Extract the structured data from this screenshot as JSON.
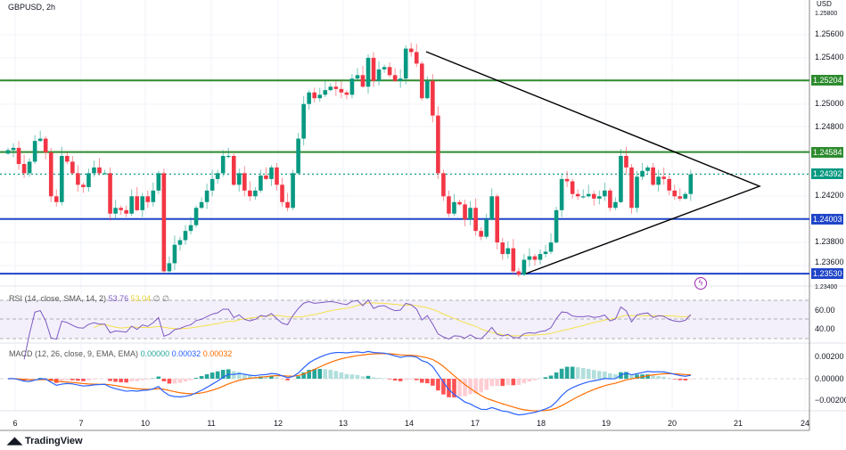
{
  "header": {
    "symbol": "GBPUSD, 2h",
    "currency": "USD"
  },
  "price_axis": [
    "1.25800",
    "1.25600",
    "1.25400",
    "1.25000",
    "1.24800",
    "1.24200",
    "1.23800",
    "1.23600",
    "1.23400"
  ],
  "levels": [
    {
      "value": "1.25204",
      "color": "#2e8b2e",
      "style": "solid"
    },
    {
      "value": "1.24584",
      "color": "#2e8b2e",
      "style": "solid"
    },
    {
      "value": "1.24392",
      "color": "#089981",
      "style": "dotted"
    },
    {
      "value": "1.24003",
      "color": "#1f45c8",
      "style": "solid"
    },
    {
      "value": "1.23530",
      "color": "#1f45c8",
      "style": "solid"
    }
  ],
  "dates": [
    "6",
    "7",
    "10",
    "11",
    "12",
    "13",
    "14",
    "17",
    "18",
    "19",
    "20",
    "21",
    "24"
  ],
  "candles_close": [
    1.246,
    1.2462,
    1.2448,
    1.244,
    1.245,
    1.2468,
    1.247,
    1.2458,
    1.242,
    1.2415,
    1.2455,
    1.245,
    1.244,
    1.243,
    1.2428,
    1.244,
    1.2445,
    1.244,
    1.244,
    1.2405,
    1.241,
    1.2408,
    1.2405,
    1.242,
    1.2408,
    1.242,
    1.2415,
    1.2425,
    1.244,
    1.2355,
    1.2362,
    1.2378,
    1.2382,
    1.239,
    1.2395,
    1.241,
    1.2415,
    1.2425,
    1.2435,
    1.244,
    1.2455,
    1.2455,
    1.243,
    1.244,
    1.2425,
    1.242,
    1.2425,
    1.2438,
    1.2435,
    1.2445,
    1.243,
    1.2415,
    1.241,
    1.244,
    1.247,
    1.25,
    1.251,
    1.2505,
    1.2508,
    1.2512,
    1.2515,
    1.2513,
    1.251,
    1.2508,
    1.2522,
    1.2525,
    1.2515,
    1.254,
    1.252,
    1.253,
    1.2532,
    1.2525,
    1.252,
    1.2522,
    1.2548,
    1.2545,
    1.2535,
    1.2505,
    1.252,
    1.249,
    1.244,
    1.242,
    1.2405,
    1.2415,
    1.2413,
    1.24,
    1.241,
    1.239,
    1.2385,
    1.24,
    1.242,
    1.238,
    1.237,
    1.2375,
    1.2355,
    1.2352,
    1.2365,
    1.2368,
    1.2365,
    1.237,
    1.2372,
    1.238,
    1.2408,
    1.2435,
    1.2433,
    1.2422,
    1.242,
    1.242,
    1.2422,
    1.2418,
    1.242,
    1.2425,
    1.241,
    1.2415,
    1.2455,
    1.2445,
    1.241,
    1.2437,
    1.2442,
    1.2445,
    1.243,
    1.2437,
    1.2435,
    1.2425,
    1.242,
    1.2418,
    1.2422,
    1.2439
  ],
  "colors": {
    "up": "#089981",
    "down": "#f23645",
    "rsi": "#7e57c2",
    "rsi_ma": "#f5e04a",
    "macd": "#2962ff",
    "signal": "#ff6d00"
  },
  "rsi": {
    "label": "RSI (14, close, SMA, 14, 2)",
    "value": "53.76",
    "ma_value": "53.04",
    "extra": "∅ ∅",
    "axis": [
      "60.00",
      "40.00"
    ]
  },
  "macd": {
    "label": "MACD (12, 26, close, 9, EMA, EMA)",
    "hist": "0.00000",
    "macd": "0.00032",
    "signal": "0.00032",
    "axis": [
      "0.00200",
      "0.00000",
      "−0.00200"
    ]
  },
  "footer": {
    "brand": "TradingView"
  }
}
